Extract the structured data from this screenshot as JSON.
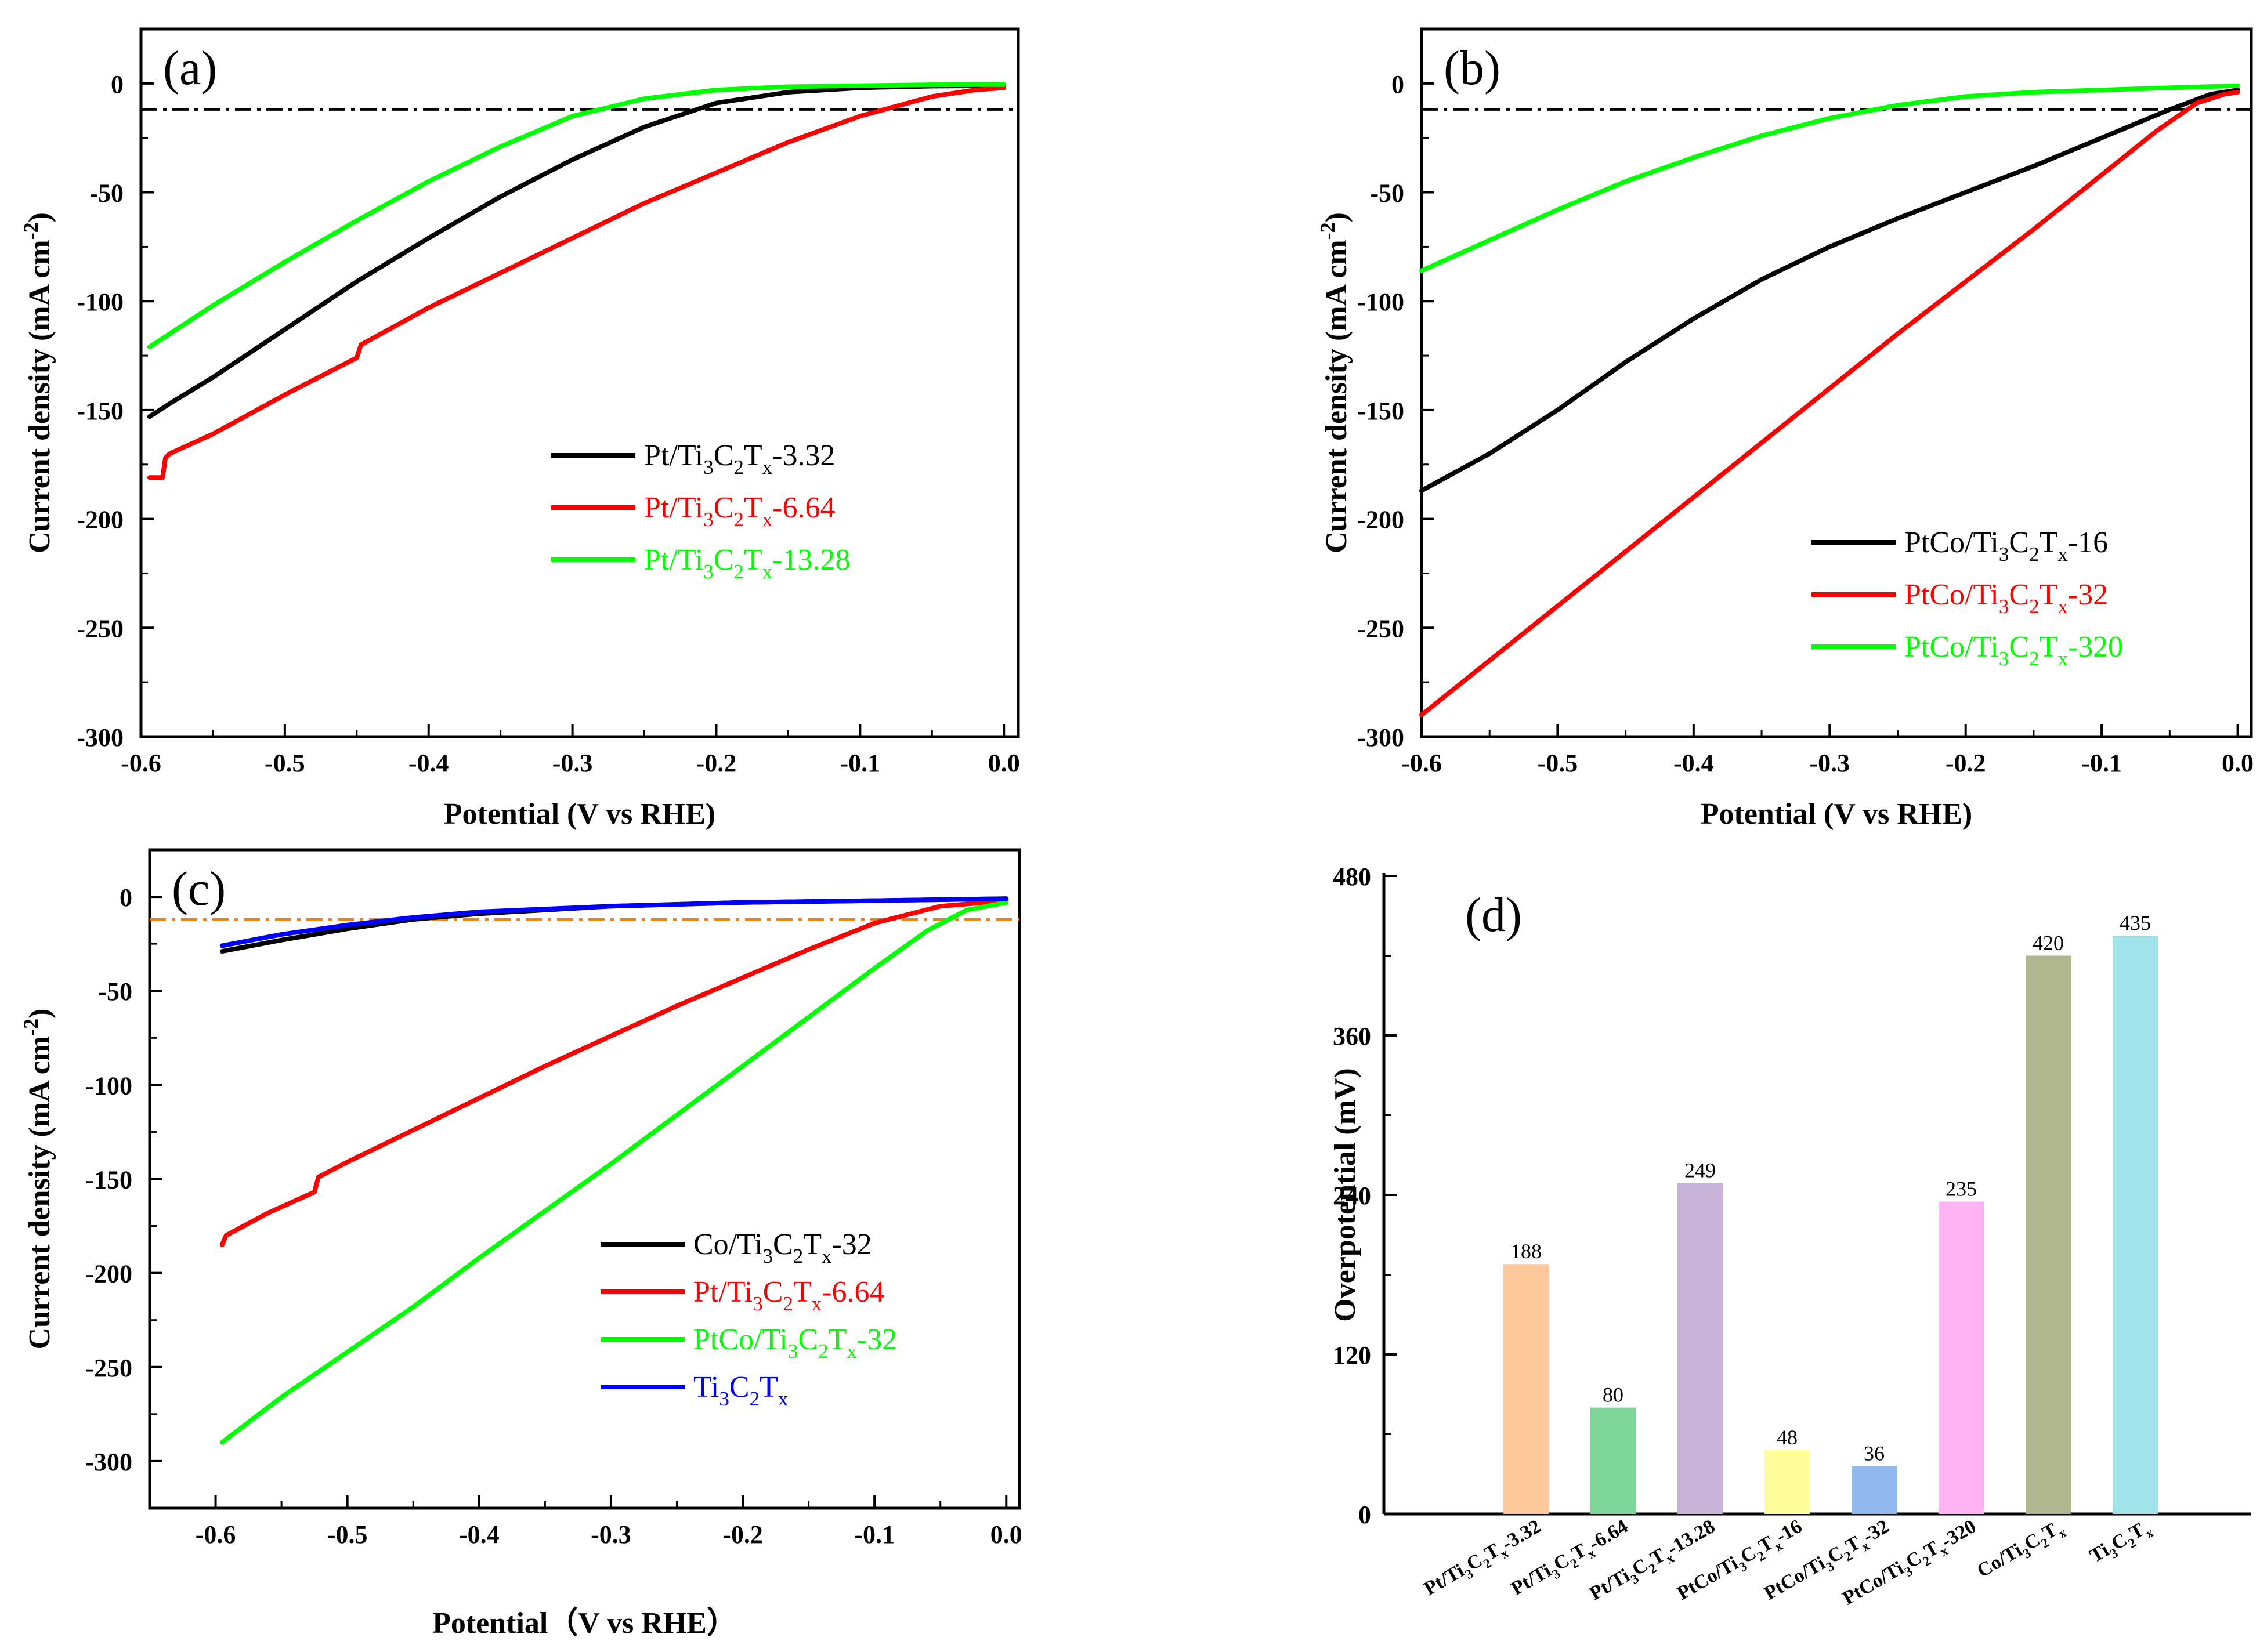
{
  "chart_data": [
    {
      "id": "a",
      "type": "line",
      "panel_label": "(a)",
      "xlabel": "Potential (V vs RHE)",
      "ylabel": "Current density (mA cm-2)",
      "ylabel_base": "Current density (mA cm",
      "ylabel_sup": "-2",
      "ylabel_end": ")",
      "xlim": [
        -0.6,
        0.01
      ],
      "ylim": [
        -300,
        25
      ],
      "xticks": [
        -0.6,
        -0.5,
        -0.4,
        -0.3,
        -0.2,
        -0.1,
        0.0
      ],
      "xtick_labels": [
        "-0.6",
        "-0.5",
        "-0.4",
        "-0.3",
        "-0.2",
        "-0.1",
        "0.0"
      ],
      "yticks": [
        0,
        -50,
        -100,
        -150,
        -200,
        -250,
        -300
      ],
      "ytick_labels": [
        "0",
        "-50",
        "-100",
        "-150",
        "-200",
        "-250",
        "-300"
      ],
      "ref_line": {
        "y": -12,
        "color": "#000000"
      },
      "legend_position": "middle-right",
      "series": [
        {
          "name": "Pt/Ti3C2Tx-3.32",
          "label": {
            "a": "Pt/Ti",
            "b": "3",
            "c": "C",
            "d": "2",
            "e": "T",
            "f": "x",
            "g": "-3.32"
          },
          "color": "#000000",
          "x": [
            -0.594,
            -0.58,
            -0.55,
            -0.5,
            -0.45,
            -0.4,
            -0.35,
            -0.3,
            -0.25,
            -0.2,
            -0.15,
            -0.1,
            -0.07,
            -0.05,
            0.0
          ],
          "y": [
            -153,
            -147,
            -135,
            -113,
            -91,
            -71,
            -52,
            -35,
            -20,
            -9,
            -4,
            -2,
            -1.5,
            -1.2,
            -1
          ]
        },
        {
          "name": "Pt/Ti3C2Tx-6.64",
          "label": {
            "a": "Pt/Ti",
            "b": "3",
            "c": "C",
            "d": "2",
            "e": "T",
            "f": "x",
            "g": "-6.64"
          },
          "color": "#ff0000",
          "x": [
            -0.594,
            -0.585,
            -0.583,
            -0.58,
            -0.55,
            -0.5,
            -0.45,
            -0.447,
            -0.4,
            -0.35,
            -0.3,
            -0.25,
            -0.2,
            -0.15,
            -0.1,
            -0.05,
            -0.02,
            0.0
          ],
          "y": [
            -181,
            -181,
            -172,
            -170,
            -161,
            -143,
            -126,
            -120,
            -103,
            -87,
            -71,
            -55,
            -41,
            -27,
            -15,
            -6,
            -3,
            -2
          ]
        },
        {
          "name": "Pt/Ti3C2Tx-13.28",
          "label": {
            "a": "Pt/Ti",
            "b": "3",
            "c": "C",
            "d": "2",
            "e": "T",
            "f": "x",
            "g": "-13.28"
          },
          "color": "#00ff00",
          "x": [
            -0.594,
            -0.55,
            -0.5,
            -0.45,
            -0.4,
            -0.35,
            -0.3,
            -0.25,
            -0.2,
            -0.15,
            -0.1,
            -0.05,
            0.0
          ],
          "y": [
            -121,
            -102,
            -82,
            -63,
            -45,
            -29,
            -15,
            -7,
            -3,
            -1.5,
            -1,
            -0.6,
            -0.5
          ]
        }
      ]
    },
    {
      "id": "b",
      "type": "line",
      "panel_label": "(b)",
      "xlabel": "Potential (V vs RHE)",
      "ylabel": "Current density (mA cm-2)",
      "ylabel_base": "Current density (mA cm",
      "ylabel_sup": "-2",
      "ylabel_end": ")",
      "xlim": [
        -0.6,
        0.01
      ],
      "ylim": [
        -300,
        25
      ],
      "xticks": [
        -0.6,
        -0.5,
        -0.4,
        -0.3,
        -0.2,
        -0.1,
        0.0
      ],
      "xtick_labels": [
        "-0.6",
        "-0.5",
        "-0.4",
        "-0.3",
        "-0.2",
        "-0.1",
        "0.0"
      ],
      "yticks": [
        0,
        -50,
        -100,
        -150,
        -200,
        -250,
        -300
      ],
      "ytick_labels": [
        "0",
        "-50",
        "-100",
        "-150",
        "-200",
        "-250",
        "-300"
      ],
      "ref_line": {
        "y": -12,
        "color": "#000000"
      },
      "legend_position": "lower-right",
      "series": [
        {
          "name": "PtCo/Ti3C2Tx-16",
          "label": {
            "a": "PtCo/Ti",
            "b": "3",
            "c": "C",
            "d": "2",
            "e": "T",
            "f": "x",
            "g": "-16"
          },
          "color": "#000000",
          "x": [
            -0.6,
            -0.55,
            -0.5,
            -0.45,
            -0.4,
            -0.35,
            -0.3,
            -0.25,
            -0.2,
            -0.15,
            -0.1,
            -0.05,
            -0.02,
            0.0
          ],
          "y": [
            -187,
            -170,
            -150,
            -128,
            -108,
            -90,
            -75,
            -62,
            -50,
            -38,
            -25,
            -12,
            -5,
            -3
          ]
        },
        {
          "name": "PtCo/Ti3C2Tx-32",
          "label": {
            "a": "PtCo/Ti",
            "b": "3",
            "c": "C",
            "d": "2",
            "e": "T",
            "f": "x",
            "g": "-32"
          },
          "color": "#ff0000",
          "x": [
            -0.6,
            -0.55,
            -0.5,
            -0.45,
            -0.4,
            -0.35,
            -0.3,
            -0.25,
            -0.2,
            -0.15,
            -0.1,
            -0.06,
            -0.03,
            -0.01,
            0.0
          ],
          "y": [
            -290,
            -265,
            -240,
            -215,
            -190,
            -165,
            -140,
            -115,
            -91,
            -67,
            -42,
            -22,
            -9,
            -5,
            -4
          ]
        },
        {
          "name": "PtCo/Ti3C2Tx-320",
          "label": {
            "a": "PtCo/Ti",
            "b": "3",
            "c": "C",
            "d": "2",
            "e": "T",
            "f": "x",
            "g": "-320"
          },
          "color": "#00ff00",
          "x": [
            -0.6,
            -0.55,
            -0.5,
            -0.45,
            -0.4,
            -0.35,
            -0.3,
            -0.25,
            -0.2,
            -0.15,
            -0.1,
            -0.05,
            0.0
          ],
          "y": [
            -86,
            -72,
            -58,
            -45,
            -34,
            -24,
            -16,
            -10,
            -6,
            -4,
            -3,
            -2,
            -1
          ]
        }
      ]
    },
    {
      "id": "c",
      "type": "line",
      "panel_label": "(c)",
      "xlabel": "Potential（V vs RHE）",
      "ylabel": "Current density (mA cm-2)",
      "ylabel_base": "Current density (mA cm",
      "ylabel_sup": "-2",
      "ylabel_end": ")",
      "xlim": [
        -0.65,
        0.01
      ],
      "ylim": [
        -325,
        25
      ],
      "xticks": [
        -0.6,
        -0.5,
        -0.4,
        -0.3,
        -0.2,
        -0.1,
        0.0
      ],
      "xtick_labels": [
        "-0.6",
        "-0.5",
        "-0.4",
        "-0.3",
        "-0.2",
        "-0.1",
        "0.0"
      ],
      "yticks": [
        0,
        -50,
        -100,
        -150,
        -200,
        -250,
        -300
      ],
      "ytick_labels": [
        "0",
        "-50",
        "-100",
        "-150",
        "-200",
        "-250",
        "-300"
      ],
      "ref_line": {
        "y": -12,
        "color": "#ff8000"
      },
      "legend_position": "lower-right",
      "series": [
        {
          "name": "Co/Ti3C2Tx-32",
          "label": {
            "a": "Co/Ti",
            "b": "3",
            "c": "C",
            "d": "2",
            "e": "T",
            "f": "x",
            "g": "-32"
          },
          "color": "#000000",
          "x": [
            -0.595,
            -0.55,
            -0.5,
            -0.45,
            -0.4,
            -0.3,
            -0.2,
            -0.1,
            0.0
          ],
          "y": [
            -29,
            -23,
            -17,
            -12,
            -9,
            -5,
            -3,
            -2,
            -1
          ]
        },
        {
          "name": "Pt/Ti3C2Tx-6.64",
          "label": {
            "a": "Pt/Ti",
            "b": "3",
            "c": "C",
            "d": "2",
            "e": "T",
            "f": "x",
            "g": "-6.64"
          },
          "color": "#ff0000",
          "x": [
            -0.595,
            -0.592,
            -0.56,
            -0.525,
            -0.522,
            -0.5,
            -0.45,
            -0.4,
            -0.35,
            -0.3,
            -0.25,
            -0.2,
            -0.15,
            -0.1,
            -0.05,
            0.0
          ],
          "y": [
            -185,
            -180,
            -168,
            -157,
            -149,
            -141,
            -124,
            -107,
            -90,
            -74,
            -58,
            -43,
            -28,
            -14,
            -5,
            -2
          ]
        },
        {
          "name": "PtCo/Ti3C2Tx-32",
          "label": {
            "a": "PtCo/Ti",
            "b": "3",
            "c": "C",
            "d": "2",
            "e": "T",
            "f": "x",
            "g": "-32"
          },
          "color": "#00ff00",
          "x": [
            -0.595,
            -0.55,
            -0.5,
            -0.45,
            -0.4,
            -0.35,
            -0.3,
            -0.25,
            -0.2,
            -0.15,
            -0.1,
            -0.06,
            -0.03,
            0.0
          ],
          "y": [
            -290,
            -266,
            -242,
            -218,
            -192,
            -167,
            -142,
            -116,
            -90,
            -64,
            -38,
            -18,
            -7,
            -3
          ]
        },
        {
          "name": "Ti3C2Tx",
          "label": {
            "a": "Ti",
            "b": "3",
            "c": "C",
            "d": "2",
            "e": "T",
            "f": "x",
            "g": ""
          },
          "color": "#0000ff",
          "x": [
            -0.595,
            -0.55,
            -0.5,
            -0.45,
            -0.4,
            -0.3,
            -0.2,
            -0.1,
            0.0
          ],
          "y": [
            -26,
            -20,
            -15,
            -11,
            -8,
            -5,
            -3,
            -2,
            -1
          ]
        }
      ]
    },
    {
      "id": "d",
      "type": "bar",
      "panel_label": "(d)",
      "xlabel": "",
      "ylabel": "Overpotential (mV)",
      "ylim": [
        0,
        480
      ],
      "yticks": [
        0,
        120,
        240,
        360,
        480
      ],
      "ytick_labels": [
        "0",
        "120",
        "240",
        "360",
        "480"
      ],
      "categories": [
        "Pt/Ti3C2Tx-3.32",
        "Pt/Ti3C2Tx-6.64",
        "Pt/Ti3C2Tx-13.28",
        "PtCo/Ti3C2Tx-16",
        "PtCo/Ti3C2Tx-32",
        "PtCo/Ti3C2Tx-320",
        "Co/Ti3C2Tx",
        "Ti3C2Tx"
      ],
      "category_labels": [
        {
          "a": "Pt/Ti",
          "b": "3",
          "c": "C",
          "d": "2",
          "e": "T",
          "f": "x",
          "g": "-3.32"
        },
        {
          "a": "Pt/Ti",
          "b": "3",
          "c": "C",
          "d": "2",
          "e": "T",
          "f": "x",
          "g": "-6.64"
        },
        {
          "a": "Pt/Ti",
          "b": "3",
          "c": "C",
          "d": "2",
          "e": "T",
          "f": "x",
          "g": "-13.28"
        },
        {
          "a": "PtCo/Ti",
          "b": "3",
          "c": "C",
          "d": "2",
          "e": "T",
          "f": "x",
          "g": "-16"
        },
        {
          "a": "PtCo/Ti",
          "b": "3",
          "c": "C",
          "d": "2",
          "e": "T",
          "f": "x",
          "g": "-32"
        },
        {
          "a": "PtCo/Ti",
          "b": "3",
          "c": "C",
          "d": "2",
          "e": "T",
          "f": "x",
          "g": "-320"
        },
        {
          "a": "Co/Ti",
          "b": "3",
          "c": "C",
          "d": "2",
          "e": "T",
          "f": "x",
          "g": ""
        },
        {
          "a": "Ti",
          "b": "3",
          "c": "C",
          "d": "2",
          "e": "T",
          "f": "x",
          "g": ""
        }
      ],
      "values": [
        188,
        80,
        249,
        48,
        36,
        235,
        420,
        435
      ],
      "value_labels": [
        "188",
        "80",
        "249",
        "48",
        "36",
        "235",
        "420",
        "435"
      ],
      "colors": [
        "#ffc89a",
        "#7fd69a",
        "#c8b2d8",
        "#fffe99",
        "#8fb9ef",
        "#feb4f4",
        "#b0b68e",
        "#9fe3e8"
      ]
    }
  ]
}
